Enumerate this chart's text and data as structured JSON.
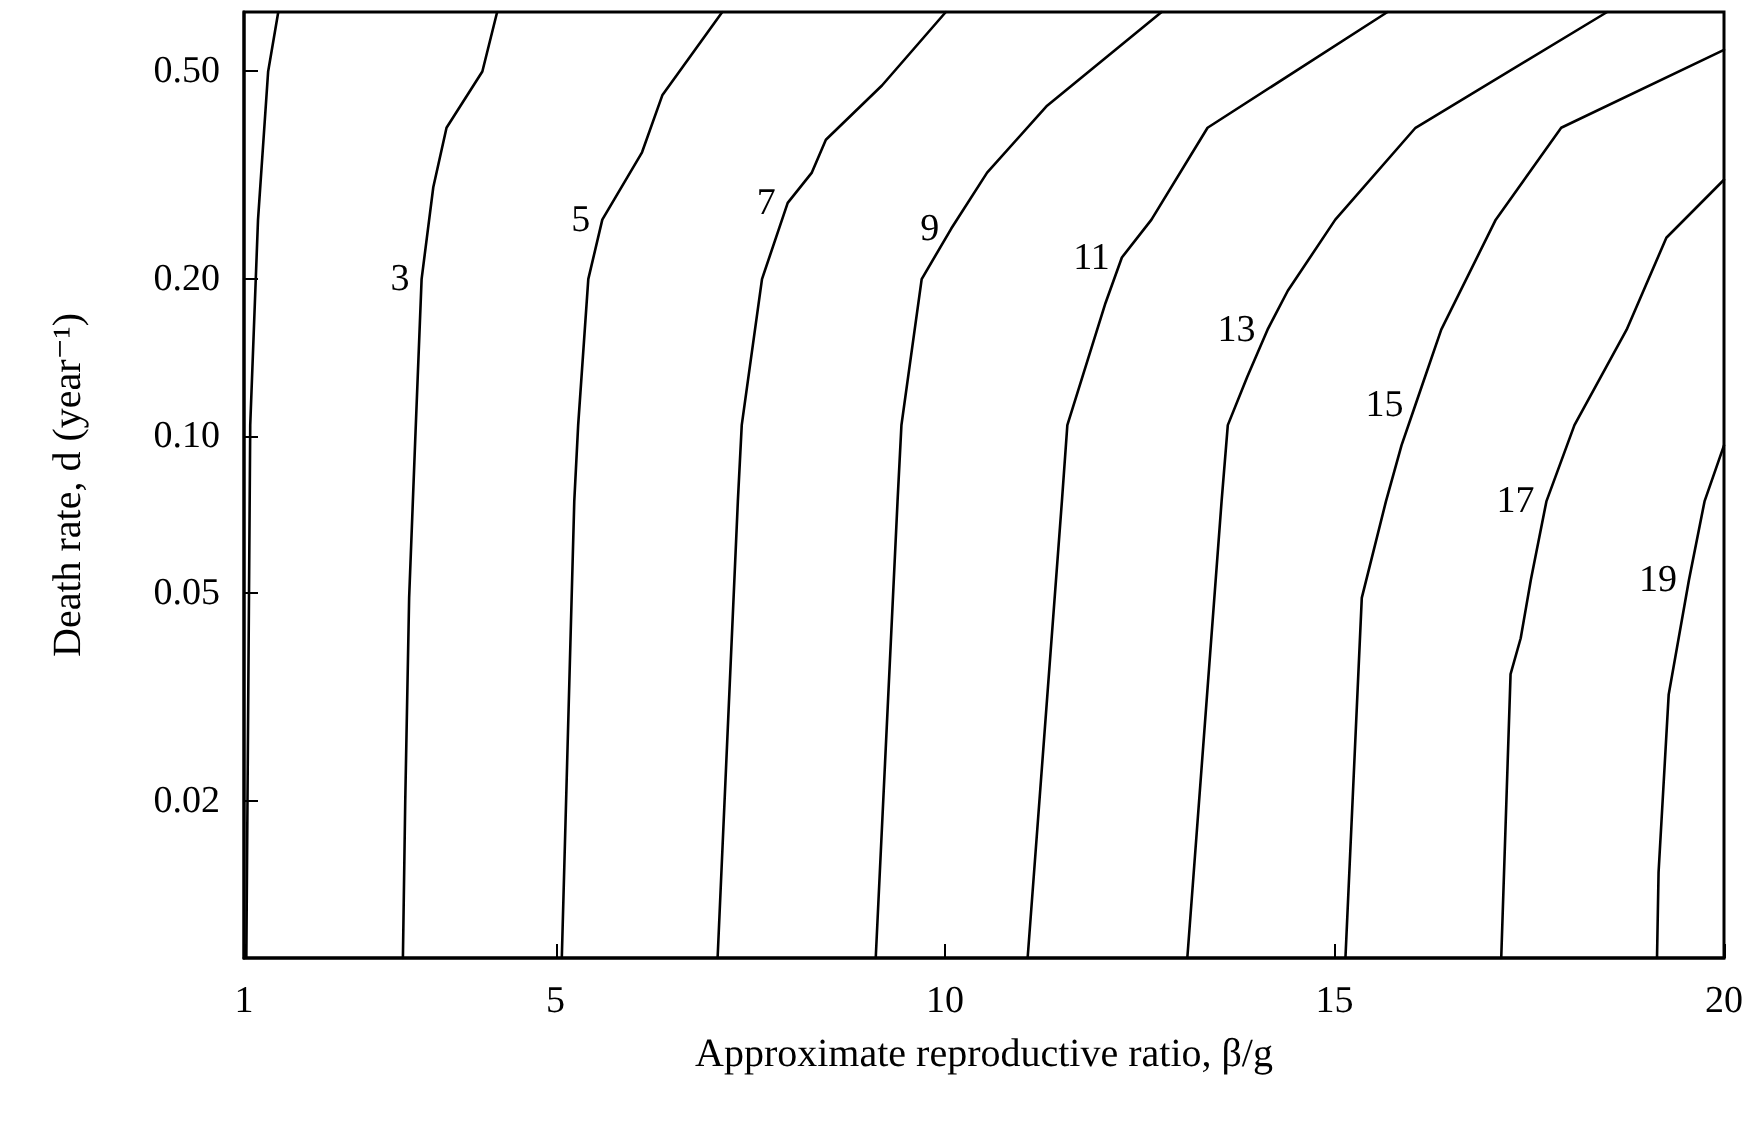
{
  "chart_data": {
    "type": "line",
    "xlabel": "Approximate reproductive ratio, β/g",
    "ylabel": "Death rate, d (year⁻¹)",
    "log": "y",
    "xlim": [
      1,
      20
    ],
    "xticks": [
      1,
      5,
      10,
      15,
      20
    ],
    "ylim": [
      0.01,
      0.65
    ],
    "yticks": [
      {
        "value": 0.02,
        "label": "0.02"
      },
      {
        "value": 0.05,
        "label": "0.05"
      },
      {
        "value": 0.1,
        "label": "0.10"
      },
      {
        "value": 0.2,
        "label": "0.20"
      },
      {
        "value": 0.5,
        "label": "0.50"
      }
    ],
    "grid": false,
    "legend": false,
    "marker": "none",
    "line_style": "solid",
    "series": [
      {
        "color": "#000000",
        "x": [
          1.03,
          1.08,
          1.18,
          1.31,
          1.44
        ],
        "values": [
          0.01,
          0.105,
          0.26,
          0.5,
          0.65
        ]
      },
      {
        "name": "3",
        "color": "#000000",
        "x": [
          3.04,
          3.07,
          3.12,
          3.2,
          3.28,
          3.43,
          3.6,
          4.06,
          4.25
        ],
        "values": [
          0.01,
          0.02,
          0.049,
          0.1,
          0.2,
          0.3,
          0.39,
          0.5,
          0.65
        ]
      },
      {
        "name": "5",
        "color": "#000000",
        "x": [
          5.08,
          5.24,
          5.29,
          5.42,
          5.6,
          6.11,
          6.37,
          7.14
        ],
        "values": [
          0.01,
          0.075,
          0.105,
          0.2,
          0.26,
          0.35,
          0.45,
          0.65
        ]
      },
      {
        "name": "7",
        "color": "#000000",
        "x": [
          7.08,
          7.34,
          7.39,
          7.65,
          7.98,
          8.29,
          8.47,
          9.19,
          10.01
        ],
        "values": [
          0.01,
          0.075,
          0.105,
          0.2,
          0.28,
          0.32,
          0.37,
          0.47,
          0.65
        ]
      },
      {
        "name": "9",
        "color": "#000000",
        "x": [
          9.11,
          9.39,
          9.44,
          9.7,
          10.08,
          10.54,
          11.31,
          12.78
        ],
        "values": [
          0.01,
          0.075,
          0.105,
          0.2,
          0.25,
          0.32,
          0.43,
          0.65
        ]
      },
      {
        "name": "11",
        "color": "#000000",
        "x": [
          11.06,
          11.5,
          11.57,
          12.06,
          12.27,
          12.65,
          13.37,
          15.68
        ],
        "values": [
          0.01,
          0.075,
          0.105,
          0.18,
          0.22,
          0.26,
          0.39,
          0.65
        ]
      },
      {
        "name": "13",
        "color": "#000000",
        "x": [
          13.11,
          13.55,
          13.63,
          13.88,
          14.14,
          14.4,
          15.01,
          16.04,
          18.5
        ],
        "values": [
          0.01,
          0.075,
          0.105,
          0.13,
          0.16,
          0.19,
          0.26,
          0.39,
          0.65
        ]
      },
      {
        "name": "15",
        "color": "#000000",
        "x": [
          15.14,
          15.35,
          15.66,
          15.86,
          16.04,
          16.37,
          17.07,
          17.91,
          20
        ],
        "values": [
          0.01,
          0.049,
          0.075,
          0.096,
          0.115,
          0.16,
          0.26,
          0.39,
          0.55
        ]
      },
      {
        "name": "17",
        "color": "#000000",
        "x": [
          17.14,
          17.26,
          17.39,
          17.52,
          17.72,
          18.08,
          18.75,
          19.26,
          20
        ],
        "values": [
          0.01,
          0.035,
          0.041,
          0.053,
          0.075,
          0.105,
          0.16,
          0.24,
          0.31
        ]
      },
      {
        "name": "19",
        "color": "#000000",
        "x": [
          19.14,
          19.16,
          19.29,
          19.55,
          19.75,
          20
        ],
        "values": [
          0.01,
          0.0146,
          0.032,
          0.053,
          0.075,
          0.096
        ]
      }
    ]
  }
}
